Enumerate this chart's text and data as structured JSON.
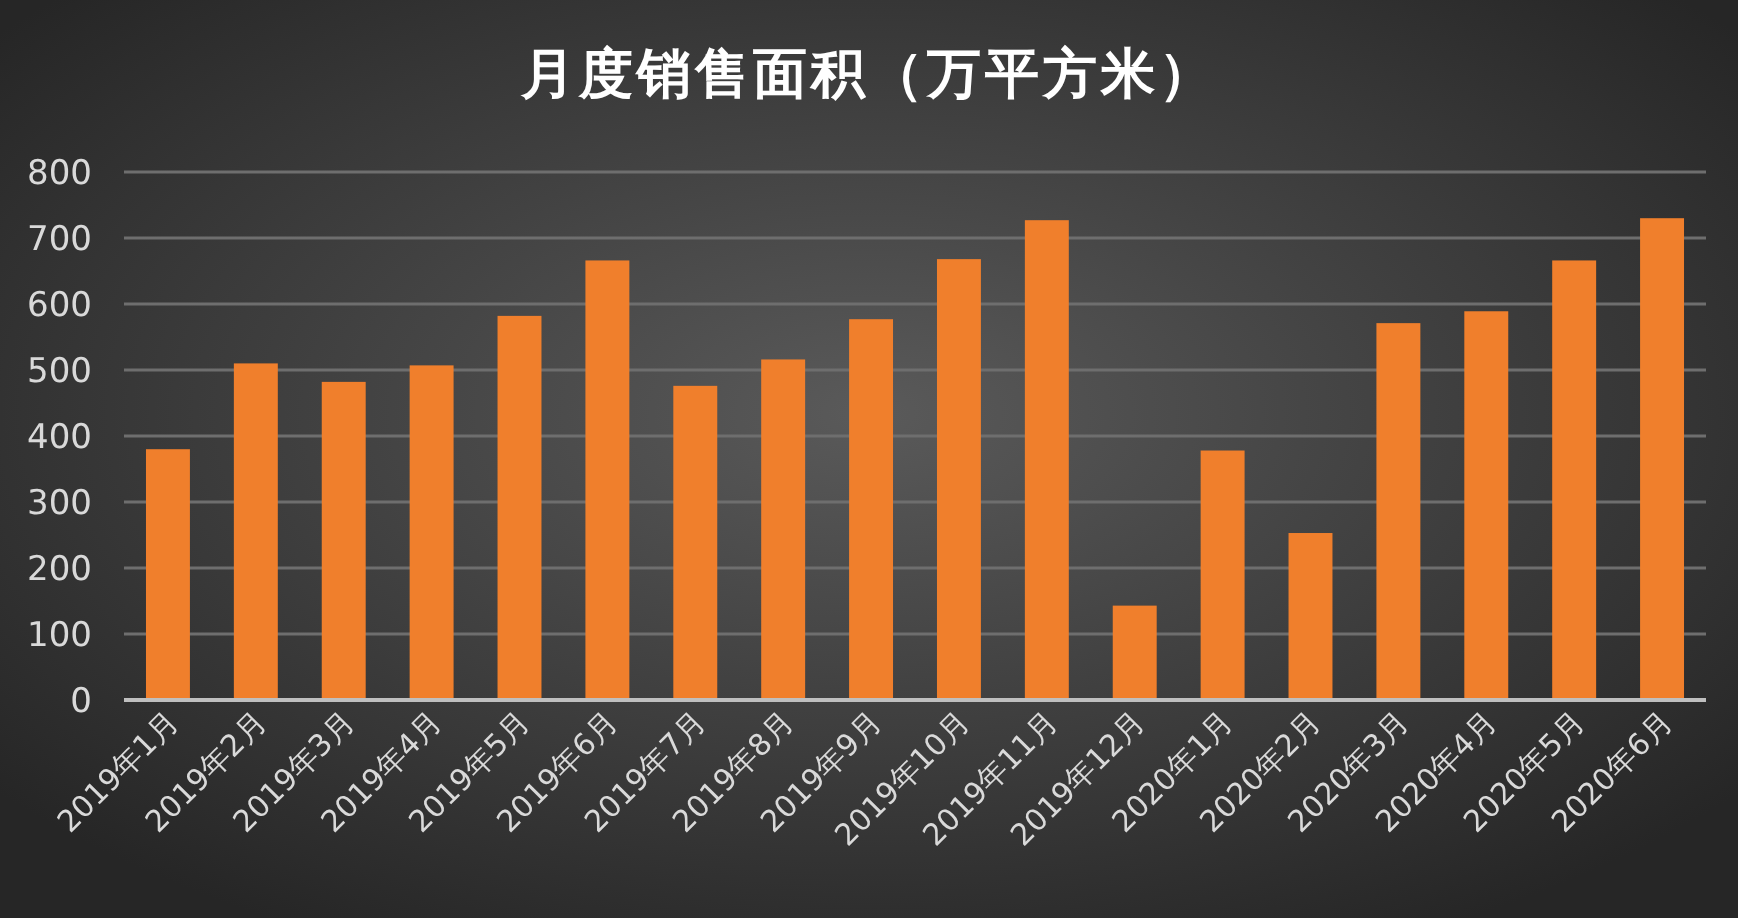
{
  "chart_data": {
    "type": "bar",
    "title": "月度销售面积（万平方米）",
    "categories": [
      "2019年1月",
      "2019年2月",
      "2019年3月",
      "2019年4月",
      "2019年5月",
      "2019年6月",
      "2019年7月",
      "2019年8月",
      "2019年9月",
      "2019年10月",
      "2019年11月",
      "2019年12月",
      "2020年1月",
      "2020年2月",
      "2020年3月",
      "2020年4月",
      "2020年5月",
      "2020年6月"
    ],
    "values": [
      380,
      510,
      482,
      507,
      582,
      666,
      476,
      516,
      577,
      668,
      727,
      143,
      378,
      253,
      571,
      589,
      666,
      730
    ],
    "color": "#f07f2c",
    "ylim": [
      0,
      800
    ],
    "yticks": [
      0,
      100,
      200,
      300,
      400,
      500,
      600,
      700,
      800
    ],
    "grid": "y"
  }
}
